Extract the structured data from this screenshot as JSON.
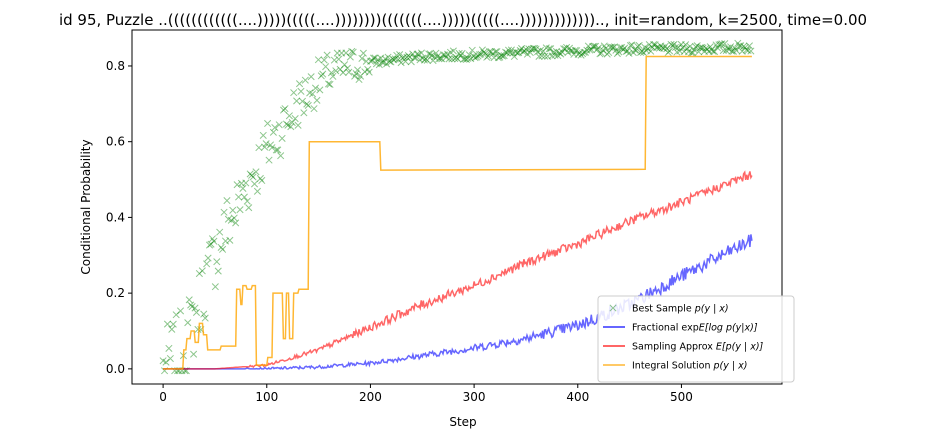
{
  "chart_data": {
    "type": "line",
    "title": "id 95, Puzzle ..((((((((((((....)))))(((((....))))))))(((((((....)))))(((((....))))))))))))).., init=random, k=2500, time=0.00",
    "xlabel": "Step",
    "ylabel": "Conditional Probability",
    "xlim": [
      -30,
      597
    ],
    "ylim": [
      -0.04,
      0.895
    ],
    "xticks": [
      0,
      100,
      200,
      300,
      400,
      500
    ],
    "yticks": [
      0.0,
      0.2,
      0.4,
      0.6,
      0.8
    ],
    "xtick_labels": [
      "0",
      "100",
      "200",
      "300",
      "400",
      "500"
    ],
    "ytick_labels": [
      "0.0",
      "0.2",
      "0.4",
      "0.6",
      "0.8"
    ],
    "legend_position": "lower right",
    "grid": false,
    "series": [
      {
        "name": "Best Sample p(y | x)",
        "legend_label": "Best Sample ",
        "legend_math": "p(y | x)",
        "kind": "scatter",
        "marker": "x",
        "color": "#008000",
        "x": [
          0,
          10,
          20,
          30,
          40,
          50,
          60,
          70,
          80,
          90,
          100,
          110,
          120,
          130,
          140,
          150,
          160,
          180,
          200,
          250,
          300,
          350,
          400,
          450,
          500,
          568
        ],
        "y": [
          0.0,
          0.03,
          0.06,
          0.13,
          0.22,
          0.3,
          0.37,
          0.42,
          0.48,
          0.53,
          0.58,
          0.62,
          0.66,
          0.7,
          0.73,
          0.76,
          0.78,
          0.8,
          0.81,
          0.825,
          0.83,
          0.835,
          0.84,
          0.845,
          0.845,
          0.85
        ]
      },
      {
        "name": "Fractional exp E[log p(y|x)]",
        "legend_label": "Fractional exp",
        "legend_math": "E[log p(y|x)]",
        "kind": "line",
        "color": "#0000ff",
        "x": [
          0,
          100,
          150,
          200,
          250,
          300,
          350,
          400,
          450,
          500,
          568
        ],
        "y": [
          0.0,
          0.0,
          0.005,
          0.015,
          0.035,
          0.055,
          0.08,
          0.115,
          0.17,
          0.245,
          0.34
        ]
      },
      {
        "name": "Sampling Approx E[p(y | x)]",
        "legend_label": "Sampling Approx ",
        "legend_math": "E[p(y | x)]",
        "kind": "line",
        "color": "#ff0000",
        "x": [
          0,
          50,
          100,
          150,
          200,
          250,
          300,
          350,
          400,
          450,
          500,
          568
        ],
        "y": [
          0.0,
          0.0,
          0.01,
          0.05,
          0.11,
          0.17,
          0.22,
          0.28,
          0.33,
          0.39,
          0.44,
          0.515
        ]
      },
      {
        "name": "Integral Solution p(y | x)",
        "legend_label": "Integral Solution ",
        "legend_math": "p(y | x)",
        "kind": "line",
        "color": "#ffa500",
        "x": [
          0,
          19,
          20,
          22,
          23,
          26,
          27,
          30,
          31,
          34,
          35,
          38,
          39,
          42,
          43,
          55,
          56,
          70,
          71,
          74,
          75,
          76,
          77,
          80,
          81,
          85,
          86,
          89,
          90,
          100,
          101,
          105,
          106,
          115,
          116,
          118,
          119,
          121,
          122,
          125,
          126,
          130,
          131,
          140,
          141,
          145,
          146,
          209,
          210,
          465,
          466,
          568
        ],
        "y": [
          0.0,
          0.0,
          0.05,
          0.05,
          0.08,
          0.08,
          0.1,
          0.1,
          0.07,
          0.07,
          0.12,
          0.12,
          0.09,
          0.09,
          0.05,
          0.05,
          0.06,
          0.06,
          0.21,
          0.21,
          0.17,
          0.17,
          0.22,
          0.22,
          0.21,
          0.21,
          0.22,
          0.22,
          0.01,
          0.01,
          0.03,
          0.03,
          0.2,
          0.2,
          0.08,
          0.08,
          0.2,
          0.2,
          0.08,
          0.08,
          0.2,
          0.2,
          0.21,
          0.21,
          0.6,
          0.6,
          0.6,
          0.6,
          0.525,
          0.527,
          0.825,
          0.825
        ]
      }
    ]
  }
}
